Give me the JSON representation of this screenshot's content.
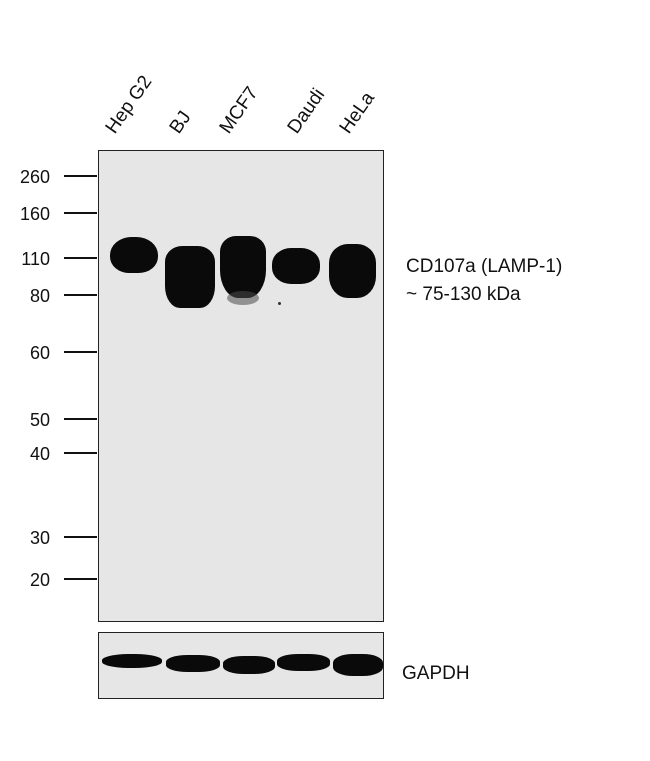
{
  "lanes": [
    "Hep G2",
    "BJ",
    "MCF7",
    "Daudi",
    "HeLa"
  ],
  "markers": [
    "260",
    "160",
    "110",
    "80",
    "60",
    "50",
    "40",
    "30",
    "20"
  ],
  "target": {
    "name": "CD107a (LAMP-1)",
    "size": "~ 75-130 kDa"
  },
  "loading_control": "GAPDH"
}
